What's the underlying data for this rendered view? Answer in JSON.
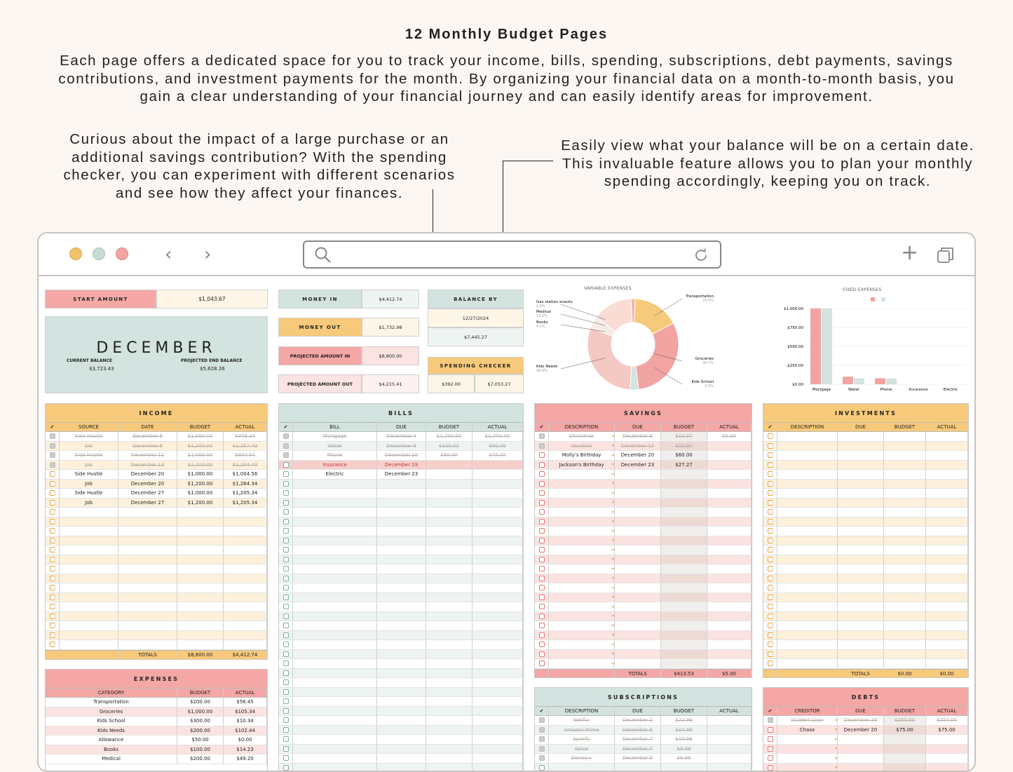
{
  "header": {
    "title": "12 Monthly Budget Pages",
    "description": "Each page offers a dedicated space for you to track your income, bills, spending, subscriptions, debt payments, savings contributions, and investment payments for the month. By organizing your financial data on a month-to-month basis, you gain a clear understanding of your financial journey and can easily identify areas for improvement."
  },
  "callouts": {
    "left": "Curious about the impact of a large purchase or an additional savings contribution? With the spending checker, you can experiment with different scenarios and see how they affect your finances.",
    "right": "Easily view what your balance will be on a certain date. This invaluable feature allows you to plan your monthly spending accordingly, keeping you on track."
  },
  "colors": {
    "pink": "#f4a7a5",
    "sage": "#d3e3df",
    "peach": "#f7c97a",
    "cream": "#fdf6e7",
    "traffic": [
      "#f2c26c",
      "#c6dcd6",
      "#f2a4a3"
    ]
  },
  "browser": {
    "back_icon": "chevron-left-icon",
    "forward_icon": "chevron-right-icon",
    "search_icon": "search-icon",
    "reload_icon": "reload-icon",
    "new_tab": "+",
    "tabs_icon": "tabs-icon"
  },
  "summary": {
    "start_label": "START AMOUNT",
    "start_value": "$1,043.67",
    "month": "DECEMBER",
    "current_label": "CURRENT BALANCE",
    "current_value": "$3,723.43",
    "projected_label": "PROJECTED END BALANCE",
    "projected_value": "$5,628.26",
    "money_in_label": "MONEY IN",
    "money_in": "$4,412.74",
    "money_out_label": "MONEY OUT",
    "money_out": "$1,732.98",
    "proj_in_label": "PROJECTED AMOUNT IN",
    "proj_in": "$8,800.00",
    "proj_out_label": "PROJECTED AMOUNT OUT",
    "proj_out": "$4,215.41",
    "balance_by_label": "BALANCE BY",
    "balance_date": "12/27/2024",
    "balance_value": "$7,445.27",
    "checker_label": "SPENDING CHECKER",
    "checker_a": "$392.00",
    "checker_b": "$7,053.27"
  },
  "income": {
    "title": "INCOME",
    "cols": [
      "✔",
      "SOURCE",
      "DATE",
      "BUDGET",
      "ACTUAL"
    ],
    "rows": [
      [
        "Side Hustle",
        "December 6",
        "$1,000.00",
        "$946.34",
        true
      ],
      [
        "Job",
        "December 6",
        "$1,200.00",
        "$1,357.43",
        true
      ],
      [
        "Side Hustle",
        "December 13",
        "$1,000.00",
        "$904.54",
        true
      ],
      [
        "Job",
        "December 13",
        "$1,200.00",
        "$1,204.43",
        true
      ],
      [
        "Side Hustle",
        "December 20",
        "$1,000.00",
        "$1,004.56",
        false
      ],
      [
        "Job",
        "December 20",
        "$1,200.00",
        "$1,264.34",
        false
      ],
      [
        "Side Hustle",
        "December 27",
        "$1,000.00",
        "$1,205.34",
        false
      ],
      [
        "Job",
        "December 27",
        "$1,200.00",
        "$1,205.34",
        false
      ]
    ],
    "totals_label": "TOTALS",
    "total_budget": "$8,800.00",
    "total_actual": "$4,412.74"
  },
  "expenses": {
    "title": "EXPENSES",
    "cols": [
      "CATEGORY",
      "BUDGET",
      "ACTUAL"
    ],
    "rows": [
      [
        "Transportation",
        "$200.00",
        "$56.45"
      ],
      [
        "Groceries",
        "$1,000.00",
        "$105.34"
      ],
      [
        "Kids School",
        "$300.00",
        "$10.34"
      ],
      [
        "Kids Needs",
        "$200.00",
        "$102.44"
      ],
      [
        "Allowance",
        "$50.00",
        "$0.00"
      ],
      [
        "Books",
        "$100.00",
        "$14.23"
      ],
      [
        "Medical",
        "$200.00",
        "$49.20"
      ]
    ]
  },
  "bills": {
    "title": "BILLS",
    "cols": [
      "✔",
      "BILL",
      "DUE",
      "BUDGET",
      "ACTUAL"
    ],
    "rows": [
      [
        "Mortgage",
        "December 4",
        "$1,000.00",
        "$1,000.00",
        "done"
      ],
      [
        "Water",
        "December 6",
        "$100.00",
        "$80.00",
        "done"
      ],
      [
        "Phone",
        "December 10",
        "$80.00",
        "$75.00",
        "done"
      ],
      [
        "Insurance",
        "December 19",
        "",
        "",
        "late"
      ],
      [
        "Electric",
        "December 23",
        "",
        "",
        ""
      ]
    ]
  },
  "savings": {
    "title": "SAVINGS",
    "cols": [
      "✔",
      "DESCRIPTION",
      "DUE",
      "BUDGET",
      "ACTUAL"
    ],
    "rows": [
      [
        "Christmas",
        "December 6",
        "$13.57",
        "$5.00",
        true
      ],
      [
        "Vacation",
        "December 17",
        "$25.84",
        "",
        true
      ],
      [
        "Molly's Birthday",
        "December 20",
        "$60.00",
        "",
        false
      ],
      [
        "Jackson's Birthday",
        "December 23",
        "$27.27",
        "",
        false
      ]
    ],
    "totals_label": "TOTALS",
    "total_budget": "$413.53",
    "total_actual": "$5.00"
  },
  "investments": {
    "title": "INVESTMENTS",
    "cols": [
      "✔",
      "DESCRIPTION",
      "DUE",
      "BUDGET",
      "ACTUAL"
    ],
    "totals_label": "TOTALS",
    "total_budget": "$0.00",
    "total_actual": "$0.00"
  },
  "subscriptions": {
    "title": "SUBSCRIPTIONS",
    "cols": [
      "✔",
      "DESCRIPTION",
      "DUE",
      "BUDGET",
      "ACTUAL"
    ],
    "rows": [
      [
        "Netflix",
        "December 2",
        "$22.99"
      ],
      [
        "Amazon Prime",
        "December 6",
        "$14.99"
      ],
      [
        "Spotify",
        "December 7",
        "$10.99"
      ],
      [
        "Spice",
        "December 7",
        "$9.99"
      ],
      [
        "Disney+",
        "December 9",
        "$9.99"
      ]
    ]
  },
  "debts": {
    "title": "DEBTS",
    "cols": [
      "✔",
      "CREDITOR",
      "DUE",
      "BUDGET",
      "ACTUAL"
    ],
    "rows": [
      [
        "Student Loan",
        "December 16",
        "$250.00",
        "$250.00",
        true
      ],
      [
        "Chase",
        "December 20",
        "$75.00",
        "$75.00",
        false
      ]
    ]
  },
  "chart_data": [
    {
      "type": "pie",
      "title": "VARIABLE EXPENSES",
      "labels": [
        "Transportation",
        "Groceries",
        "Kids School",
        "Kids Needs",
        "Books",
        "Medical",
        "Gas station snacks"
      ],
      "values": [
        16.5,
        30.7,
        3.0,
        29.9,
        4.1,
        14.2,
        1.5
      ],
      "value_labels": [
        "16.5%",
        "30.7%",
        "3.0%",
        "29.9%",
        "4.1%",
        "14.2%",
        "1.5%"
      ],
      "colors": [
        "#f7c97a",
        "#f2a4a3",
        "#d3e3df",
        "#f4c9c4",
        "#f7ebe6",
        "#f9dcd4",
        "#f0b8a8"
      ]
    },
    {
      "type": "bar",
      "title": "FIXED EXPENSES",
      "categories": [
        "Mortgage",
        "Water",
        "Phone",
        "Insurance",
        "Electric"
      ],
      "series": [
        {
          "values": [
            1000,
            100,
            80,
            0,
            0
          ]
        },
        {
          "values": [
            1000,
            80,
            75,
            0,
            0
          ]
        }
      ],
      "yticks": [
        "$1,000.00",
        "$750.00",
        "$500.00",
        "$250.00",
        "$0.00"
      ],
      "ylim": [
        0,
        1000
      ],
      "colors": [
        "#f2a4a3",
        "#d3e3df"
      ]
    }
  ]
}
